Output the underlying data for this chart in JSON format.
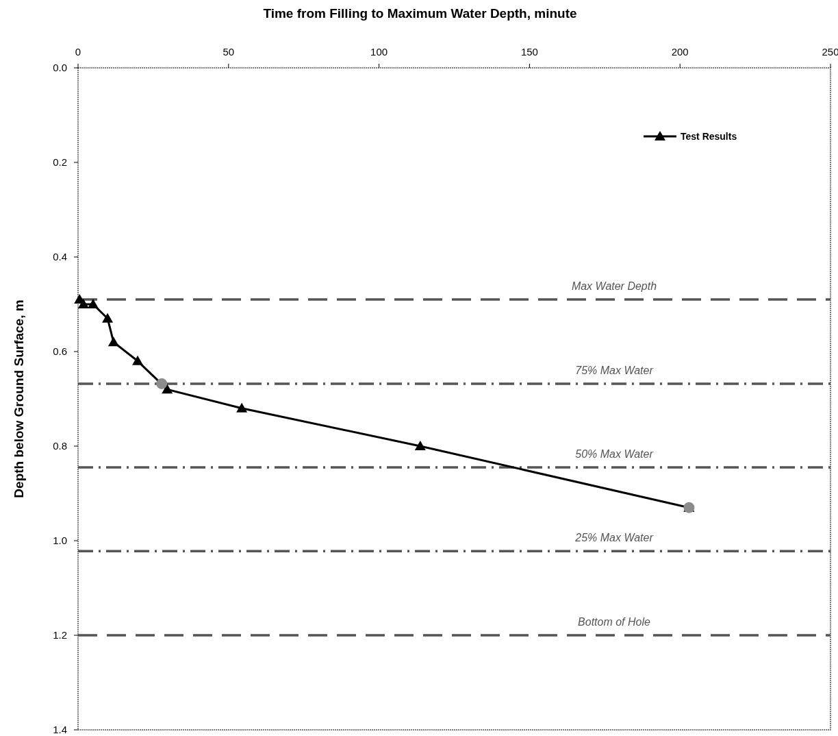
{
  "chart_data": {
    "type": "line",
    "xlabel": "Time from Filling to Maximum Water Depth, minute",
    "ylabel": "Depth below Ground Surface, m",
    "xlim": [
      0,
      250
    ],
    "xticks": [
      0,
      50,
      100,
      150,
      200,
      250
    ],
    "ylim": [
      1.4,
      0
    ],
    "yticks": [
      {
        "value": 0,
        "label": "0.0"
      },
      {
        "value": 0.2,
        "label": "0.2"
      },
      {
        "value": 0.4,
        "label": "0.4"
      },
      {
        "value": 0.6,
        "label": "0.6"
      },
      {
        "value": 0.8,
        "label": "0.8"
      },
      {
        "value": 1,
        "label": "1.0"
      },
      {
        "value": 1.2,
        "label": "1.2"
      },
      {
        "value": 1.4,
        "label": "1.4"
      }
    ],
    "series": [
      {
        "name": "Test Results",
        "color": "#000000",
        "marker": "triangle",
        "line_style": "solid",
        "x": [
          0.5,
          1.8,
          5,
          9.8,
          11.8,
          19.8,
          29.6,
          54.4,
          113.7,
          203
        ],
        "values": [
          0.49,
          0.5,
          0.5,
          0.53,
          0.58,
          0.62,
          0.68,
          0.72,
          0.8,
          0.93
        ]
      },
      {
        "type": "scatter",
        "color": "#8c8c8c",
        "marker": "circle",
        "x": [
          27.8,
          203
        ],
        "values": [
          0.668,
          0.93
        ]
      }
    ],
    "ref_lines": [
      {
        "axis": "y",
        "value": 0.49,
        "label": "Max Water Depth",
        "line_style": "dashed",
        "color": "#555555"
      },
      {
        "axis": "y",
        "value": 0.668,
        "label": "75% Max Water",
        "line_style": "dashdot",
        "color": "#555555"
      },
      {
        "axis": "y",
        "value": 0.845,
        "label": "50% Max Water",
        "line_style": "dashdot",
        "color": "#555555"
      },
      {
        "axis": "y",
        "value": 1.022,
        "label": "25% Max Water",
        "line_style": "dashdot",
        "color": "#555555"
      },
      {
        "axis": "y",
        "value": 1.2,
        "label": "Bottom of Hole",
        "line_style": "dashed",
        "color": "#555555"
      }
    ],
    "grid": false,
    "legend": "top right"
  }
}
